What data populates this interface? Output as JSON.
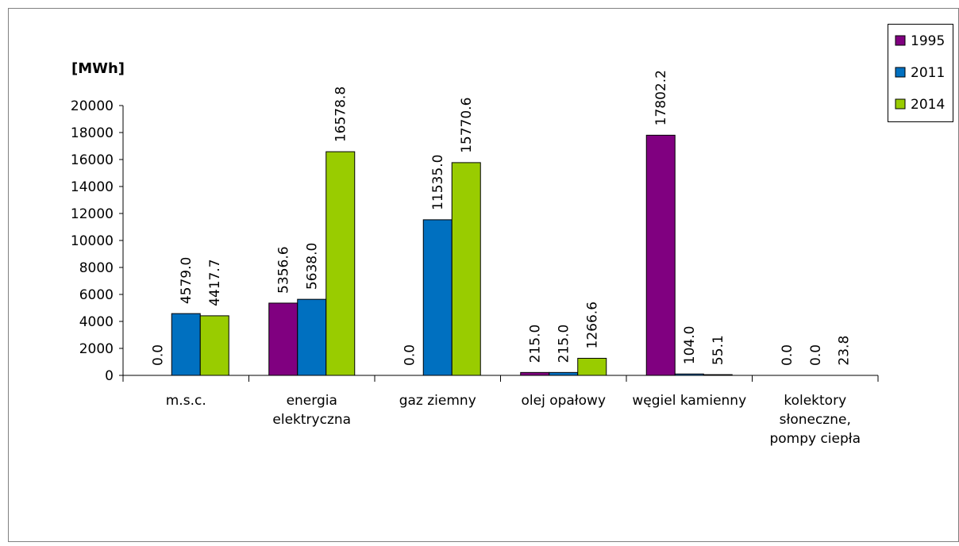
{
  "chart_data": {
    "type": "bar",
    "unit_label": "[MWh]",
    "categories": [
      [
        "m.s.c."
      ],
      [
        "energia",
        "elektryczna"
      ],
      [
        "gaz ziemny"
      ],
      [
        "olej opałowy"
      ],
      [
        "węgiel kamienny"
      ],
      [
        "kolektory",
        "słoneczne,",
        "pompy ciepła"
      ]
    ],
    "series": [
      {
        "name": "1995",
        "color": "#800080",
        "values": [
          0.0,
          5356.6,
          0.0,
          215.0,
          17802.2,
          0.0
        ],
        "labels": [
          "0.0",
          "5356.6",
          "0.0",
          "215.0",
          "17802.2",
          "0.0"
        ]
      },
      {
        "name": "2011",
        "color": "#0070C0",
        "values": [
          4579.0,
          5638.0,
          11535.0,
          215.0,
          104.0,
          0.0
        ],
        "labels": [
          "4579.0",
          "5638.0",
          "11535.0",
          "215.0",
          "104.0",
          "0.0"
        ]
      },
      {
        "name": "2014",
        "color": "#99CC00",
        "values": [
          4417.7,
          16578.8,
          15770.6,
          1266.6,
          55.1,
          23.8
        ],
        "labels": [
          "4417.7",
          "16578.8",
          "15770.6",
          "1266.6",
          "55.1",
          "23.8"
        ]
      }
    ],
    "y_ticks": [
      "0",
      "2000",
      "4000",
      "6000",
      "8000",
      "10000",
      "12000",
      "14000",
      "16000",
      "18000",
      "20000"
    ],
    "ylim": [
      0,
      20000
    ],
    "grid": false,
    "legend_position": "top-right"
  }
}
